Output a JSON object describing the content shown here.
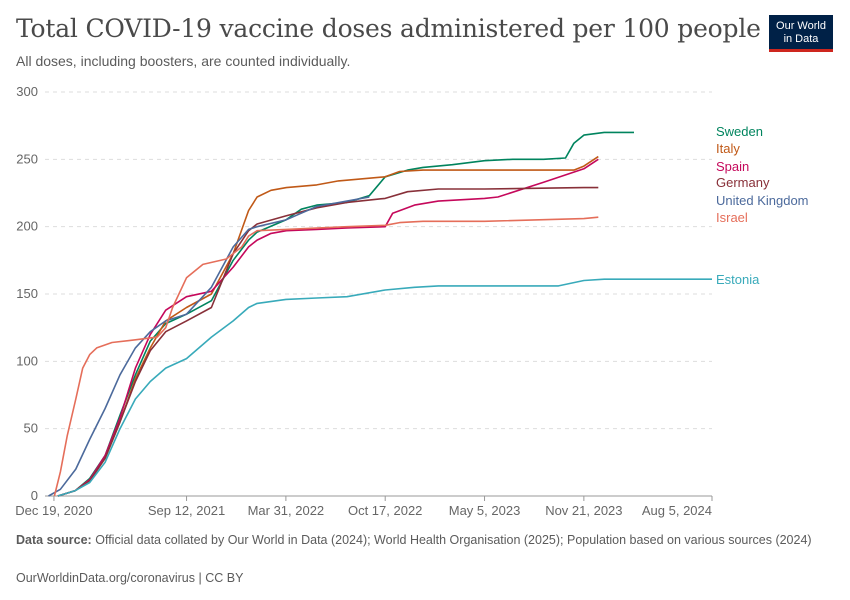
{
  "header": {
    "title": "Total COVID-19 vaccine doses administered per 100 people",
    "subtitle": "All doses, including boosters, are counted individually."
  },
  "logo": {
    "line1": "Our World",
    "line2": "in Data",
    "bg_color": "#002147",
    "accent_color": "#ce261e"
  },
  "footer": {
    "source_label": "Data source:",
    "source_text": "Official data collated by Our World in Data (2024); World Health Organisation (2025); Population based on various sources (2024)",
    "url": "OurWorldinData.org/coronavirus | CC BY"
  },
  "chart_data": {
    "type": "line",
    "ylim": [
      0,
      300
    ],
    "yticks": [
      0,
      50,
      100,
      150,
      200,
      250,
      300
    ],
    "xlim": [
      "2020-12-01",
      "2024-08-05"
    ],
    "xticks": [
      {
        "date": "2020-12-19",
        "label": "Dec 19, 2020"
      },
      {
        "date": "2021-09-12",
        "label": "Sep 12, 2021"
      },
      {
        "date": "2022-03-31",
        "label": "Mar 31, 2022"
      },
      {
        "date": "2022-10-17",
        "label": "Oct 17, 2022"
      },
      {
        "date": "2023-05-05",
        "label": "May 5, 2023"
      },
      {
        "date": "2023-11-21",
        "label": "Nov 21, 2023"
      },
      {
        "date": "2024-08-05",
        "label": "Aug 5, 2024"
      }
    ],
    "grid": "horizontal-dashed",
    "legend": "right-end-labels",
    "series": [
      {
        "name": "Sweden",
        "color": "#00845e",
        "points": [
          [
            "2020-12-27",
            0
          ],
          [
            "2021-01-31",
            4
          ],
          [
            "2021-03-01",
            13
          ],
          [
            "2021-04-01",
            30
          ],
          [
            "2021-05-01",
            60
          ],
          [
            "2021-06-01",
            90
          ],
          [
            "2021-07-01",
            115
          ],
          [
            "2021-08-01",
            128
          ],
          [
            "2021-09-12",
            135
          ],
          [
            "2021-11-01",
            145
          ],
          [
            "2021-12-15",
            175
          ],
          [
            "2022-01-15",
            190
          ],
          [
            "2022-02-01",
            196
          ],
          [
            "2022-03-31",
            205
          ],
          [
            "2022-05-01",
            213
          ],
          [
            "2022-06-01",
            216
          ],
          [
            "2022-07-01",
            217
          ],
          [
            "2022-08-01",
            218
          ],
          [
            "2022-09-15",
            223
          ],
          [
            "2022-10-17",
            237
          ],
          [
            "2022-12-01",
            242
          ],
          [
            "2023-01-01",
            244
          ],
          [
            "2023-03-01",
            246
          ],
          [
            "2023-05-05",
            249
          ],
          [
            "2023-07-01",
            250
          ],
          [
            "2023-09-01",
            250
          ],
          [
            "2023-10-15",
            251
          ],
          [
            "2023-11-01",
            262
          ],
          [
            "2023-11-21",
            268
          ],
          [
            "2024-01-01",
            270
          ],
          [
            "2024-03-01",
            270
          ]
        ]
      },
      {
        "name": "Italy",
        "color": "#c05917",
        "points": [
          [
            "2020-12-27",
            0
          ],
          [
            "2021-01-31",
            4
          ],
          [
            "2021-03-01",
            12
          ],
          [
            "2021-04-01",
            28
          ],
          [
            "2021-05-01",
            55
          ],
          [
            "2021-06-01",
            87
          ],
          [
            "2021-07-01",
            110
          ],
          [
            "2021-08-01",
            130
          ],
          [
            "2021-09-12",
            140
          ],
          [
            "2021-11-01",
            150
          ],
          [
            "2021-12-15",
            180
          ],
          [
            "2022-01-15",
            212
          ],
          [
            "2022-02-01",
            222
          ],
          [
            "2022-03-01",
            227
          ],
          [
            "2022-04-01",
            229
          ],
          [
            "2022-06-01",
            231
          ],
          [
            "2022-07-15",
            234
          ],
          [
            "2022-10-17",
            237
          ],
          [
            "2022-11-15",
            241
          ],
          [
            "2023-01-01",
            242
          ],
          [
            "2023-05-05",
            242
          ],
          [
            "2023-11-01",
            242
          ],
          [
            "2023-11-21",
            245
          ],
          [
            "2023-12-20",
            252
          ]
        ]
      },
      {
        "name": "Spain",
        "color": "#c5085b",
        "points": [
          [
            "2020-12-27",
            0
          ],
          [
            "2021-01-31",
            4
          ],
          [
            "2021-03-01",
            12
          ],
          [
            "2021-04-01",
            30
          ],
          [
            "2021-05-01",
            58
          ],
          [
            "2021-06-01",
            95
          ],
          [
            "2021-07-01",
            120
          ],
          [
            "2021-08-01",
            138
          ],
          [
            "2021-09-12",
            148
          ],
          [
            "2021-11-01",
            152
          ],
          [
            "2021-12-15",
            170
          ],
          [
            "2022-01-15",
            185
          ],
          [
            "2022-02-01",
            190
          ],
          [
            "2022-03-01",
            195
          ],
          [
            "2022-04-01",
            197
          ],
          [
            "2022-06-01",
            198
          ],
          [
            "2022-08-01",
            199
          ],
          [
            "2022-10-17",
            200
          ],
          [
            "2022-11-01",
            210
          ],
          [
            "2022-12-15",
            216
          ],
          [
            "2023-02-01",
            219
          ],
          [
            "2023-05-05",
            221
          ],
          [
            "2023-06-01",
            222
          ],
          [
            "2023-09-01",
            233
          ],
          [
            "2023-11-21",
            243
          ],
          [
            "2023-12-20",
            250
          ]
        ]
      },
      {
        "name": "Germany",
        "color": "#883039",
        "points": [
          [
            "2020-12-27",
            0
          ],
          [
            "2021-01-31",
            4
          ],
          [
            "2021-03-01",
            11
          ],
          [
            "2021-04-01",
            28
          ],
          [
            "2021-05-01",
            55
          ],
          [
            "2021-06-01",
            85
          ],
          [
            "2021-07-01",
            108
          ],
          [
            "2021-08-01",
            122
          ],
          [
            "2021-09-12",
            130
          ],
          [
            "2021-11-01",
            140
          ],
          [
            "2021-12-15",
            180
          ],
          [
            "2022-01-15",
            197
          ],
          [
            "2022-02-01",
            202
          ],
          [
            "2022-03-31",
            208
          ],
          [
            "2022-06-01",
            214
          ],
          [
            "2022-08-01",
            218
          ],
          [
            "2022-10-17",
            221
          ],
          [
            "2022-12-01",
            226
          ],
          [
            "2023-02-01",
            228
          ],
          [
            "2023-05-05",
            228
          ],
          [
            "2023-11-21",
            229
          ],
          [
            "2023-12-20",
            229
          ]
        ]
      },
      {
        "name": "United Kingdom",
        "color": "#4c6a9c",
        "points": [
          [
            "2020-12-08",
            0
          ],
          [
            "2021-01-01",
            5
          ],
          [
            "2021-02-01",
            20
          ],
          [
            "2021-03-01",
            42
          ],
          [
            "2021-04-01",
            65
          ],
          [
            "2021-05-01",
            90
          ],
          [
            "2021-06-01",
            110
          ],
          [
            "2021-07-01",
            122
          ],
          [
            "2021-08-01",
            130
          ],
          [
            "2021-09-12",
            135
          ],
          [
            "2021-11-01",
            155
          ],
          [
            "2021-12-15",
            185
          ],
          [
            "2022-01-15",
            198
          ],
          [
            "2022-02-01",
            200
          ],
          [
            "2022-03-31",
            205
          ],
          [
            "2022-05-01",
            210
          ],
          [
            "2022-06-01",
            215
          ],
          [
            "2022-08-01",
            219
          ],
          [
            "2022-09-15",
            222
          ]
        ]
      },
      {
        "name": "Israel",
        "color": "#e56e5a",
        "points": [
          [
            "2020-12-20",
            0
          ],
          [
            "2021-01-01",
            18
          ],
          [
            "2021-01-15",
            45
          ],
          [
            "2021-02-01",
            72
          ],
          [
            "2021-02-15",
            95
          ],
          [
            "2021-03-01",
            105
          ],
          [
            "2021-03-15",
            110
          ],
          [
            "2021-04-15",
            114
          ],
          [
            "2021-06-01",
            116
          ],
          [
            "2021-07-15",
            118
          ],
          [
            "2021-08-01",
            125
          ],
          [
            "2021-08-15",
            140
          ],
          [
            "2021-09-12",
            162
          ],
          [
            "2021-10-15",
            172
          ],
          [
            "2021-12-01",
            176
          ],
          [
            "2022-01-01",
            185
          ],
          [
            "2022-01-15",
            193
          ],
          [
            "2022-02-01",
            197
          ],
          [
            "2022-04-01",
            198
          ],
          [
            "2022-08-01",
            200
          ],
          [
            "2022-10-17",
            201
          ],
          [
            "2022-11-15",
            203
          ],
          [
            "2023-01-01",
            204
          ],
          [
            "2023-05-05",
            204
          ],
          [
            "2023-11-21",
            206
          ],
          [
            "2023-12-20",
            207
          ]
        ]
      },
      {
        "name": "Estonia",
        "color": "#38aaba",
        "points": [
          [
            "2020-12-27",
            0
          ],
          [
            "2021-01-31",
            4
          ],
          [
            "2021-03-01",
            10
          ],
          [
            "2021-04-01",
            25
          ],
          [
            "2021-05-01",
            50
          ],
          [
            "2021-06-01",
            72
          ],
          [
            "2021-07-01",
            85
          ],
          [
            "2021-08-01",
            95
          ],
          [
            "2021-09-12",
            102
          ],
          [
            "2021-11-01",
            118
          ],
          [
            "2021-12-15",
            130
          ],
          [
            "2022-01-15",
            140
          ],
          [
            "2022-02-01",
            143
          ],
          [
            "2022-03-31",
            146
          ],
          [
            "2022-06-01",
            147
          ],
          [
            "2022-08-01",
            148
          ],
          [
            "2022-10-17",
            153
          ],
          [
            "2022-12-15",
            155
          ],
          [
            "2023-02-01",
            156
          ],
          [
            "2023-05-05",
            156
          ],
          [
            "2023-08-01",
            156
          ],
          [
            "2023-10-01",
            156
          ],
          [
            "2023-11-21",
            160
          ],
          [
            "2024-01-01",
            161
          ],
          [
            "2024-08-05",
            161
          ]
        ]
      }
    ]
  }
}
